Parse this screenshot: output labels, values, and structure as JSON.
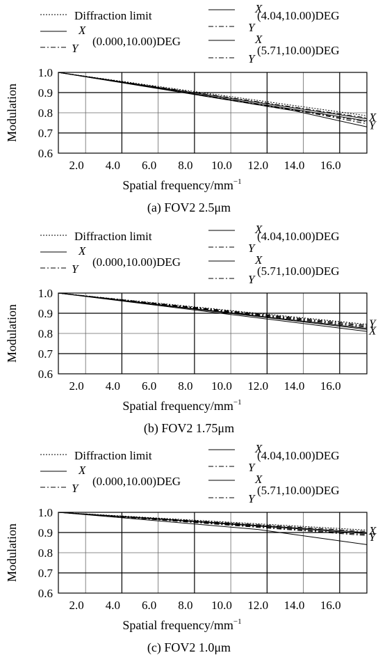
{
  "chart_data": [
    {
      "type": "line",
      "caption": "(a) FOV2 2.5μm",
      "xlabel": "Spatial frequency/mm",
      "xlabel_sup": "−1",
      "ylabel": "Modulation",
      "xlim": [
        1.0,
        18.0
      ],
      "ylim": [
        0.6,
        1.0
      ],
      "x_ticks": [
        "2.0",
        "4.0",
        "6.0",
        "8.0",
        "10.0",
        "12.0",
        "14.0",
        "16.0"
      ],
      "y_ticks": [
        "0.6",
        "0.7",
        "0.8",
        "0.9",
        "1.0"
      ],
      "legend": {
        "diffraction": "Diffraction limit",
        "fields": [
          {
            "x_label": "X",
            "y_label": "Y",
            "field": "(0.000,10.00)DEG"
          },
          {
            "x_label": "X",
            "y_label": "Y",
            "field": "(4.04,10.00)DEG"
          },
          {
            "x_label": "X",
            "y_label": "Y",
            "field": "(5.71,10.00)DEG"
          }
        ]
      },
      "end_labels": [
        {
          "text": "X",
          "y": 0.78
        },
        {
          "text": "Y",
          "y": 0.74
        }
      ],
      "series": [
        {
          "name": "Diffraction limit",
          "style": "dotted",
          "x": [
            1,
            18
          ],
          "y": [
            1.0,
            0.785
          ]
        },
        {
          "name": "X",
          "style": "solid",
          "x": [
            1,
            14,
            18
          ],
          "y": [
            1.0,
            0.81,
            0.73
          ]
        },
        {
          "name": "Y",
          "style": "dashdot",
          "x": [
            1,
            14,
            18
          ],
          "y": [
            1.0,
            0.815,
            0.745
          ]
        },
        {
          "name": "X",
          "style": "solid",
          "x": [
            1,
            18
          ],
          "y": [
            1.0,
            0.77
          ]
        },
        {
          "name": "Y",
          "style": "dashdot",
          "x": [
            1,
            18
          ],
          "y": [
            1.0,
            0.775
          ]
        },
        {
          "name": "X",
          "style": "solid",
          "x": [
            1,
            18
          ],
          "y": [
            1.0,
            0.76
          ]
        },
        {
          "name": "Y",
          "style": "dashdot",
          "x": [
            1,
            18
          ],
          "y": [
            1.0,
            0.755
          ]
        }
      ]
    },
    {
      "type": "line",
      "caption": "(b) FOV2 1.75μm",
      "xlabel": "Spatial frequency/mm",
      "xlabel_sup": "−1",
      "ylabel": "Modulation",
      "xlim": [
        1.0,
        18.0
      ],
      "ylim": [
        0.6,
        1.0
      ],
      "x_ticks": [
        "2.0",
        "4.0",
        "6.0",
        "8.0",
        "10.0",
        "12.0",
        "14.0",
        "16.0"
      ],
      "y_ticks": [
        "0.6",
        "0.7",
        "0.8",
        "0.9",
        "1.0"
      ],
      "legend": {
        "diffraction": "Diffraction limit",
        "fields": [
          {
            "x_label": "X",
            "y_label": "Y",
            "field": "(0.000,10.00)DEG"
          },
          {
            "x_label": "X",
            "y_label": "Y",
            "field": "(4.04,10.00)DEG"
          },
          {
            "x_label": "X",
            "y_label": "Y",
            "field": "(5.71,10.00)DEG"
          }
        ]
      },
      "end_labels": [
        {
          "text": "Y",
          "y": 0.85
        },
        {
          "text": "X",
          "y": 0.815
        }
      ],
      "series": [
        {
          "name": "Diffraction limit",
          "style": "dotted",
          "x": [
            1,
            18
          ],
          "y": [
            1.0,
            0.845
          ]
        },
        {
          "name": "X",
          "style": "solid",
          "x": [
            1,
            18
          ],
          "y": [
            1.0,
            0.81
          ]
        },
        {
          "name": "Y",
          "style": "dashdot",
          "x": [
            1,
            18
          ],
          "y": [
            1.0,
            0.835
          ]
        },
        {
          "name": "X",
          "style": "solid",
          "x": [
            1,
            18
          ],
          "y": [
            1.0,
            0.82
          ]
        },
        {
          "name": "Y",
          "style": "dashdot",
          "x": [
            1,
            18
          ],
          "y": [
            1.0,
            0.84
          ]
        },
        {
          "name": "X",
          "style": "solid",
          "x": [
            1,
            18
          ],
          "y": [
            1.0,
            0.825
          ]
        },
        {
          "name": "Y",
          "style": "dashdot",
          "x": [
            1,
            18
          ],
          "y": [
            1.0,
            0.83
          ]
        }
      ]
    },
    {
      "type": "line",
      "caption": "(c) FOV2 1.0μm",
      "xlabel": "Spatial frequency/mm",
      "xlabel_sup": "−1",
      "ylabel": "Modulation",
      "xlim": [
        1.0,
        18.0
      ],
      "ylim": [
        0.6,
        1.0
      ],
      "x_ticks": [
        "2.0",
        "4.0",
        "6.0",
        "8.0",
        "10.0",
        "12.0",
        "14.0",
        "16.0"
      ],
      "y_ticks": [
        "0.6",
        "0.7",
        "0.8",
        "0.9",
        "1.0"
      ],
      "legend": {
        "diffraction": "Diffraction limit",
        "fields": [
          {
            "x_label": "X",
            "y_label": "Y",
            "field": "(0.000,10.00)DEG"
          },
          {
            "x_label": "X",
            "y_label": "Y",
            "field": "(4.04,10.00)DEG"
          },
          {
            "x_label": "X",
            "y_label": "Y",
            "field": "(5.71,10.00)DEG"
          }
        ]
      },
      "end_labels": [
        {
          "text": "X",
          "y": 0.91
        },
        {
          "text": "Y",
          "y": 0.88
        }
      ],
      "series": [
        {
          "name": "Diffraction limit",
          "style": "dotted",
          "x": [
            1,
            18
          ],
          "y": [
            1.0,
            0.912
          ]
        },
        {
          "name": "X",
          "style": "solid",
          "x": [
            1,
            12,
            18
          ],
          "y": [
            1.0,
            0.915,
            0.84
          ]
        },
        {
          "name": "Y",
          "style": "dashdot",
          "x": [
            1,
            18
          ],
          "y": [
            1.0,
            0.885
          ]
        },
        {
          "name": "X",
          "style": "solid",
          "x": [
            1,
            18
          ],
          "y": [
            1.0,
            0.9
          ]
        },
        {
          "name": "Y",
          "style": "dashdot",
          "x": [
            1,
            18
          ],
          "y": [
            1.0,
            0.905
          ]
        },
        {
          "name": "X",
          "style": "solid",
          "x": [
            1,
            18
          ],
          "y": [
            1.0,
            0.895
          ]
        },
        {
          "name": "Y",
          "style": "dashdot",
          "x": [
            1,
            18
          ],
          "y": [
            1.0,
            0.89
          ]
        }
      ]
    }
  ]
}
